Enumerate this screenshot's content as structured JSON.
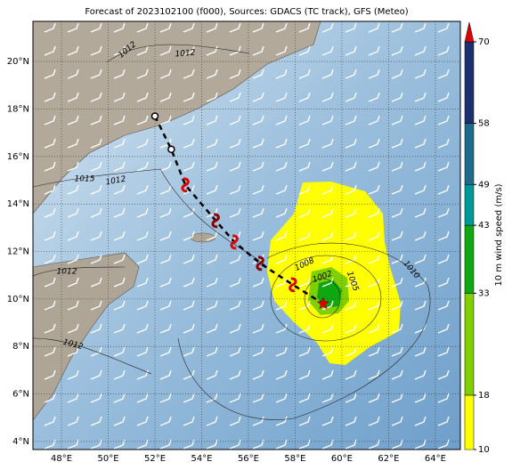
{
  "title": "Forecast of 2023102100 (f000), Sources: GDACS (TC track), GFS (Meteo)",
  "map": {
    "xlim": [
      46.78,
      65.07
    ],
    "ylim": [
      3.66,
      21.69
    ],
    "xticks": [
      {
        "value": 48,
        "label": "48°E"
      },
      {
        "value": 50,
        "label": "50°E"
      },
      {
        "value": 52,
        "label": "52°E"
      },
      {
        "value": 54,
        "label": "54°E"
      },
      {
        "value": 56,
        "label": "56°E"
      },
      {
        "value": 58,
        "label": "58°E"
      },
      {
        "value": 60,
        "label": "60°E"
      },
      {
        "value": 62,
        "label": "62°E"
      },
      {
        "value": 64,
        "label": "64°E"
      }
    ],
    "yticks": [
      {
        "value": 4,
        "label": "4°N"
      },
      {
        "value": 6,
        "label": "6°N"
      },
      {
        "value": 8,
        "label": "8°N"
      },
      {
        "value": 10,
        "label": "10°N"
      },
      {
        "value": 12,
        "label": "12°N"
      },
      {
        "value": 14,
        "label": "14°N"
      },
      {
        "value": 16,
        "label": "16°N"
      },
      {
        "value": 18,
        "label": "18°N"
      },
      {
        "value": 20,
        "label": "20°N"
      }
    ]
  },
  "colorbar": {
    "label": "10 m wind speed (m/s)",
    "ticks": [
      10,
      18,
      33,
      43,
      49,
      58,
      70
    ],
    "colors": [
      "#ffff00",
      "#80d000",
      "#10a810",
      "#009898",
      "#1e6a8a",
      "#1c2f6e"
    ]
  },
  "track": {
    "lon": [
      52.0,
      52.7,
      53.3,
      54.6,
      55.4,
      56.5,
      57.9,
      59.2
    ],
    "lat": [
      17.7,
      16.3,
      14.8,
      13.3,
      12.4,
      11.5,
      10.6,
      9.8
    ]
  },
  "isobar_labels": [
    "1012",
    "1012",
    "1015",
    "1012",
    "1012",
    "1012",
    "1008",
    "1002",
    "1005",
    "1010"
  ]
}
